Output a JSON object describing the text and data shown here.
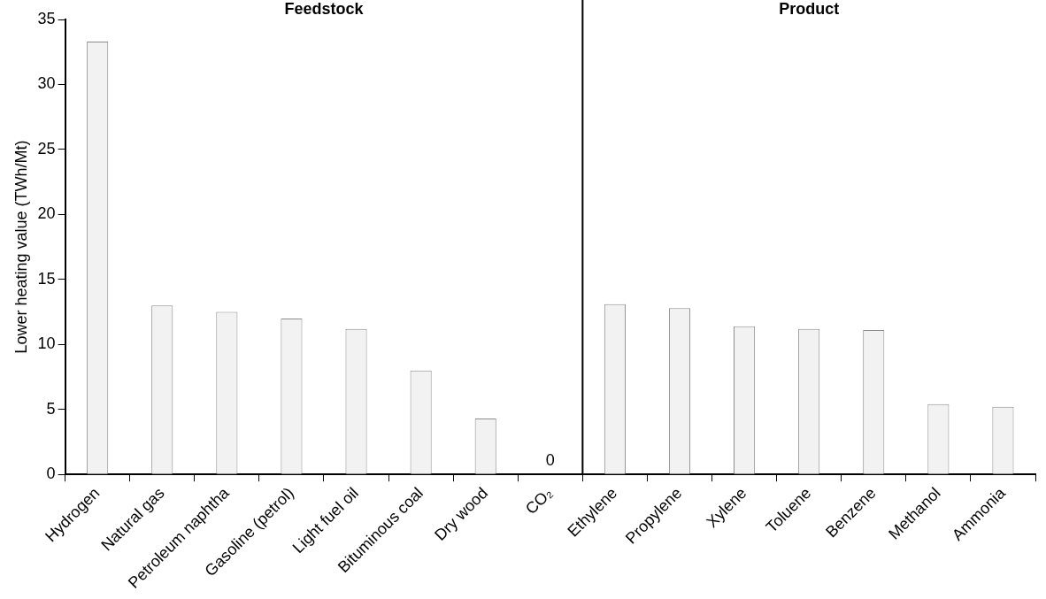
{
  "chart_data": {
    "type": "bar",
    "ylabel": "Lower heating value (TWh/Mt)",
    "categories": [
      "Hydrogen",
      "Natural gas",
      "Petroleum naphtha",
      "Gasoline (petrol)",
      "Light fuel oil",
      "Bituminous coal",
      "Dry wood",
      "CO₂",
      "Ethylene",
      "Propylene",
      "Xylene",
      "Toluene",
      "Benzene",
      "Methanol",
      "Ammonia"
    ],
    "values": [
      33.3,
      13.0,
      12.5,
      12.0,
      11.2,
      8.0,
      4.3,
      0,
      13.1,
      12.8,
      11.4,
      11.2,
      11.1,
      5.4,
      5.2
    ],
    "value_labels": [
      null,
      null,
      null,
      null,
      null,
      null,
      null,
      "0",
      null,
      null,
      null,
      null,
      null,
      null,
      null
    ],
    "color": "#f2f2f2",
    "annotations": [
      "Feedstock",
      "Product"
    ],
    "ylim": [
      0,
      35
    ],
    "yticks": [
      0,
      5,
      10,
      15,
      20,
      25,
      30,
      35
    ],
    "grid": false,
    "legend": false
  }
}
